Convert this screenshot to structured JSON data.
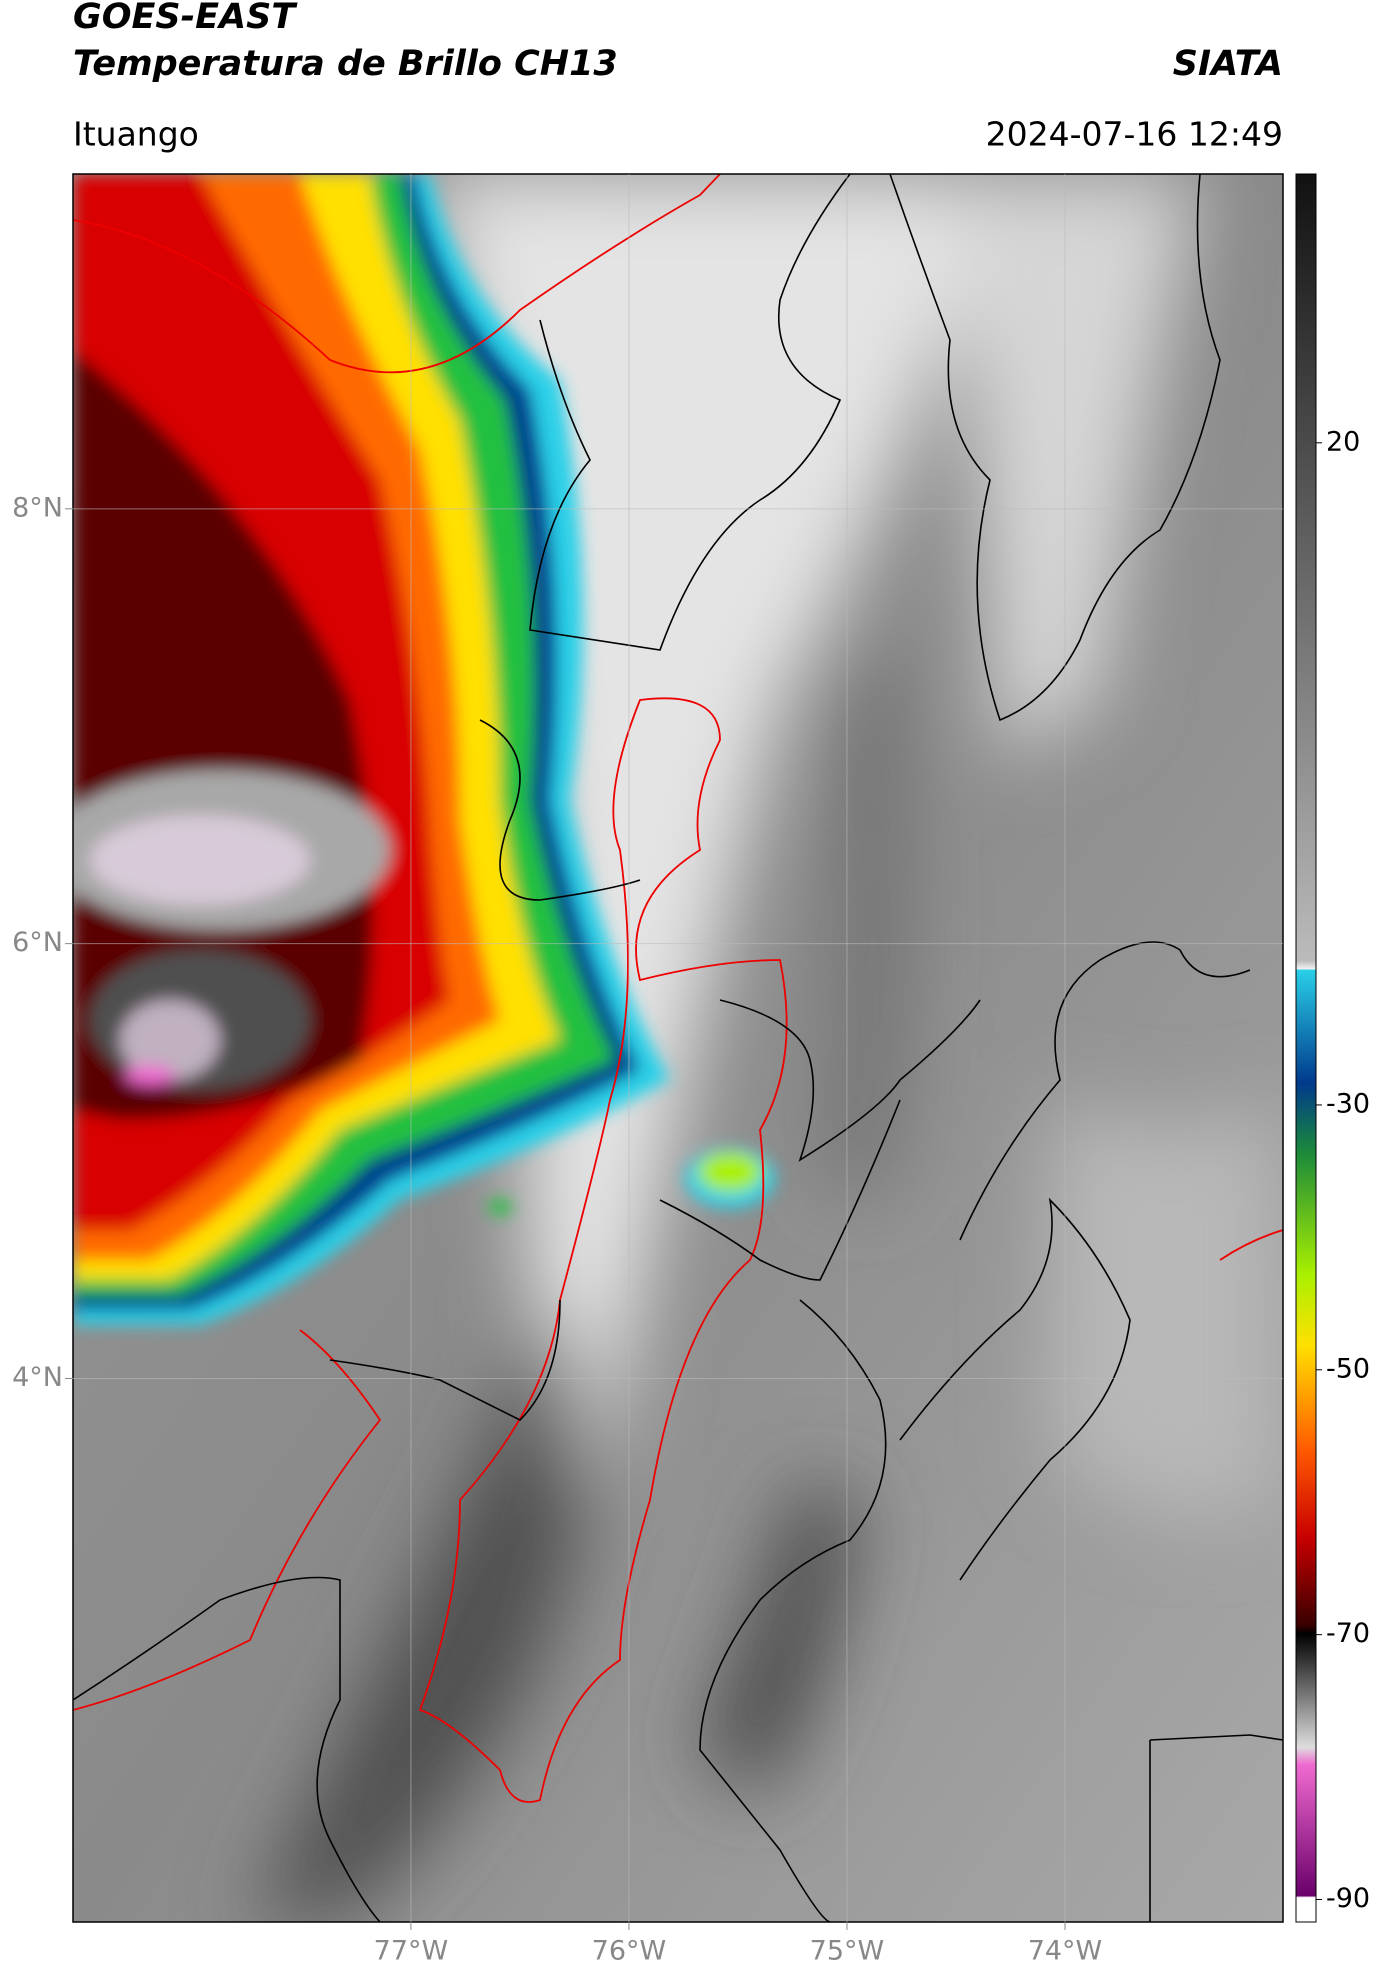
{
  "chart_data": {
    "type": "map",
    "title": "GOES-EAST",
    "subtitle": "Temperatura de Brillo CH13",
    "source": "SIATA",
    "location": "Ituango",
    "datetime": "2024-07-16 12:49",
    "xlim": [
      -78.55,
      -73.0
    ],
    "ylim": [
      1.5,
      9.54
    ],
    "xticks": [
      {
        "value": -77,
        "label": "77°W"
      },
      {
        "value": -76,
        "label": "76°W"
      },
      {
        "value": -75,
        "label": "75°W"
      },
      {
        "value": -74,
        "label": "74°W"
      }
    ],
    "yticks": [
      {
        "value": 4,
        "label": "4°N"
      },
      {
        "value": 6,
        "label": "6°N"
      },
      {
        "value": 8,
        "label": "8°N"
      }
    ],
    "clim": [
      -91.7,
      40.3
    ],
    "cticks": [
      20,
      -30,
      -50,
      -70,
      -90
    ],
    "grid": true
  }
}
